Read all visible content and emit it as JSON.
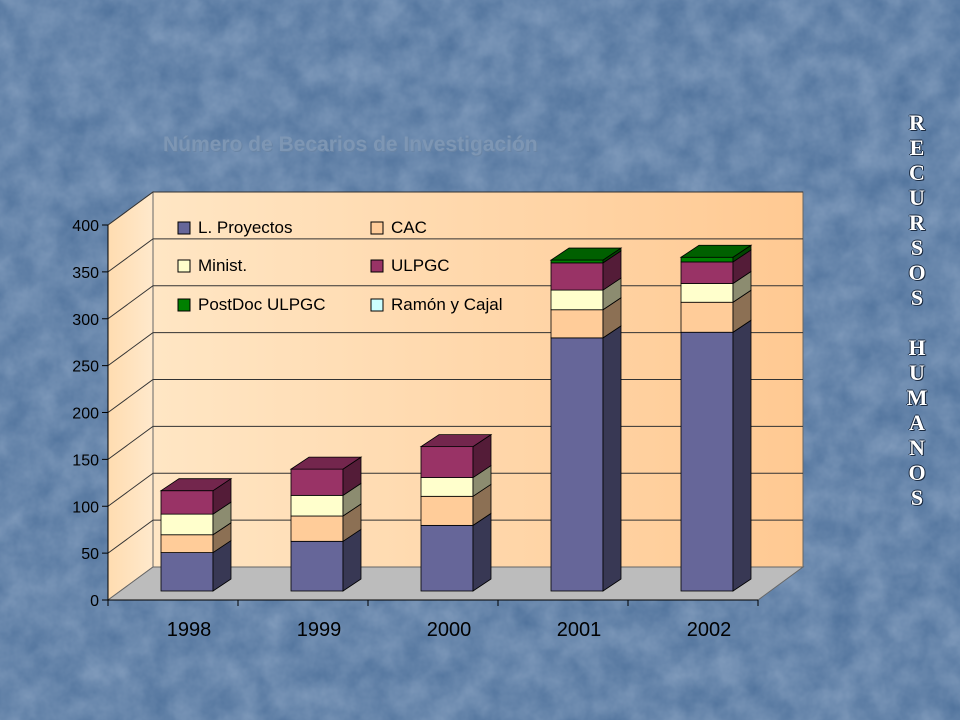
{
  "side_label": {
    "word1": [
      "R",
      "E",
      "C",
      "U",
      "R",
      "S",
      "O",
      "S"
    ],
    "word2": [
      "H",
      "U",
      "M",
      "A",
      "N",
      "O",
      "S"
    ]
  },
  "chart_data": {
    "type": "bar",
    "stacked": true,
    "three_d": true,
    "title": "Número de Becarios de Investigación",
    "categories": [
      "1998",
      "1999",
      "2000",
      "2001",
      "2002"
    ],
    "ylim": [
      0,
      400
    ],
    "yticks": [
      "0",
      "50",
      "100",
      "150",
      "200",
      "250",
      "300",
      "350",
      "400"
    ],
    "grid": true,
    "legend_position": "top-left",
    "series": [
      {
        "name": "L. Proyectos",
        "values": [
          41,
          53,
          70,
          270,
          276
        ],
        "color": "#666699"
      },
      {
        "name": "CAC",
        "values": [
          19,
          27,
          31,
          30,
          32
        ],
        "color": "#ffcc99"
      },
      {
        "name": "Minist.",
        "values": [
          22,
          22,
          20,
          21,
          20
        ],
        "color": "#ffffcc"
      },
      {
        "name": "ULPGC",
        "values": [
          25,
          28,
          33,
          29,
          23
        ],
        "color": "#993366"
      },
      {
        "name": "PostDoc ULPGC",
        "values": [
          0,
          0,
          0,
          3,
          5
        ],
        "color": "#008000"
      },
      {
        "name": "Ramón y Cajal",
        "values": [
          0,
          0,
          0,
          0,
          0
        ],
        "color": "#ccffff"
      }
    ]
  }
}
